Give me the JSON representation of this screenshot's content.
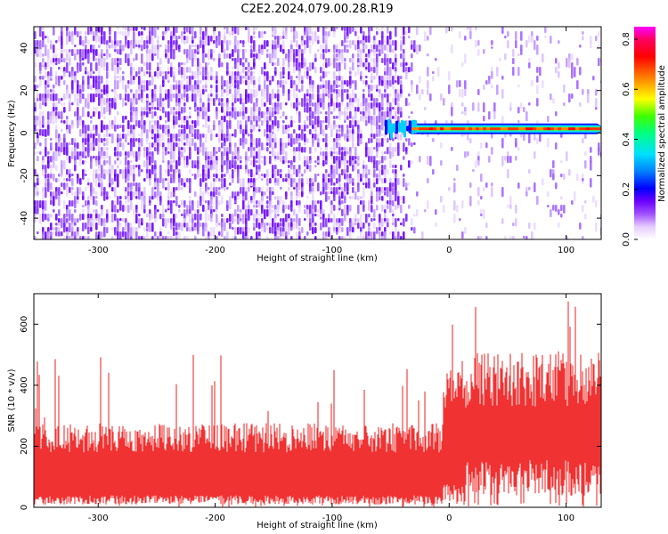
{
  "figure_title": "C2E2.2024.079.00.28.R19",
  "chart_data": [
    {
      "type": "heatmap",
      "xlabel": "Height of straight line (km)",
      "ylabel": "Frequency (Hz)",
      "xlim": [
        -355,
        130
      ],
      "ylim": [
        -50,
        50
      ],
      "x_ticks": [
        -300,
        -200,
        -100,
        0,
        100
      ],
      "y_ticks": [
        -40,
        -20,
        0,
        20,
        40
      ],
      "x_tick_labels": [
        "-300",
        "-200",
        "-100",
        "0",
        "100"
      ],
      "y_tick_labels": [
        "-40",
        "-20",
        "0",
        "20",
        "40"
      ],
      "colorbar": {
        "label": "Normalized spectral amplitude",
        "range": [
          0,
          0.85
        ],
        "ticks": [
          0.0,
          0.2,
          0.4,
          0.6,
          0.8
        ],
        "tick_labels": [
          "0.0",
          "0.2",
          "0.4",
          "0.6",
          "0.8"
        ],
        "colormap": [
          "#ffffff",
          "#e6ccff",
          "#6a00ff",
          "#0000ff",
          "#00e0ff",
          "#00ff66",
          "#ffff00",
          "#ff8000",
          "#ff0000",
          "#ff00ff"
        ]
      },
      "features": {
        "background_noise_amplitude": 0.08,
        "noise_dense_region_x": [
          -355,
          -50
        ],
        "noise_sparse_region_x": [
          -30,
          130
        ],
        "signal_line": {
          "x_start": -55,
          "x_end": 130,
          "frequency_hz": 2,
          "amplitude": 0.8
        }
      }
    },
    {
      "type": "area",
      "xlabel": "Height of straight line (km)",
      "ylabel": "SNR (10 * v/v)",
      "xlim": [
        -355,
        130
      ],
      "ylim": [
        0,
        700
      ],
      "x_ticks": [
        -300,
        -200,
        -100,
        0,
        100
      ],
      "y_ticks": [
        0,
        200,
        400,
        600
      ],
      "x_tick_labels": [
        "-300",
        "-200",
        "-100",
        "0",
        "100"
      ],
      "y_tick_labels": [
        "0",
        "200",
        "400",
        "600"
      ],
      "color": "#f03232",
      "segments": [
        {
          "x_range": [
            -355,
            -5
          ],
          "typical_low": 30,
          "typical_high": 240,
          "peak": 500
        },
        {
          "x_range": [
            -5,
            15
          ],
          "typical_low": 60,
          "typical_high": 420,
          "peak": 600
        },
        {
          "x_range": [
            15,
            130
          ],
          "typical_low": 120,
          "typical_high": 440,
          "peak": 700
        }
      ]
    }
  ]
}
